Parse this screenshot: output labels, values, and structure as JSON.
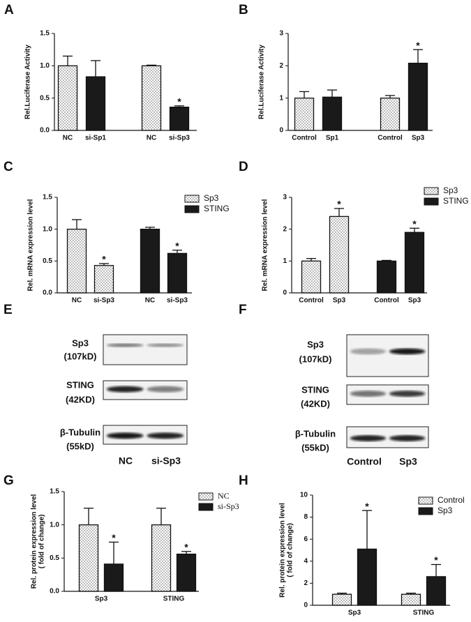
{
  "chart_data": [
    {
      "type": "bar",
      "panel": "A",
      "ylabel": [
        "Rel.Luciferase Activity"
      ],
      "categories": [
        "NC",
        "si-Sp1",
        "NC",
        "si-Sp3"
      ],
      "series": [
        {
          "pattern": "dotted",
          "values": [
            1.0,
            null,
            1.0,
            null
          ],
          "errors": [
            0.15,
            null,
            0.01,
            null
          ],
          "significance": [
            null,
            null,
            null,
            null
          ]
        },
        {
          "pattern": "solid",
          "values": [
            null,
            0.83,
            null,
            0.36
          ],
          "errors": [
            null,
            0.25,
            null,
            0.02
          ],
          "significance": [
            null,
            null,
            null,
            "*"
          ]
        }
      ],
      "ylim": [
        0,
        1.5
      ],
      "yticks": [
        {
          "value": 0,
          "label": "0.0"
        },
        0.5,
        {
          "value": 1,
          "label": "1.0"
        },
        1.5
      ]
    },
    {
      "type": "bar",
      "panel": "B",
      "ylabel": [
        "Rel.Luciferase Activity"
      ],
      "categories": [
        "Control",
        "Sp1",
        "Control",
        "Sp3"
      ],
      "series": [
        {
          "pattern": "dotted",
          "values": [
            1.0,
            null,
            1.0,
            null
          ],
          "errors": [
            0.2,
            null,
            0.08,
            null
          ],
          "significance": [
            null,
            null,
            null,
            null
          ]
        },
        {
          "pattern": "solid",
          "values": [
            null,
            1.03,
            null,
            2.08
          ],
          "errors": [
            null,
            0.22,
            null,
            0.42
          ],
          "significance": [
            null,
            null,
            null,
            "*"
          ]
        }
      ],
      "ylim": [
        0,
        3
      ],
      "yticks": [
        0,
        1,
        2,
        3
      ]
    },
    {
      "type": "bar",
      "panel": "C",
      "ylabel": [
        "Rel.  mRNA expression level"
      ],
      "categories": [
        "NC",
        "si-Sp3",
        "NC",
        "si-Sp3"
      ],
      "series": [
        {
          "name": "Sp3",
          "pattern": "dotted",
          "values": [
            1.0,
            0.43,
            null,
            null
          ],
          "errors": [
            0.15,
            0.03,
            null,
            null
          ],
          "significance": [
            null,
            "*",
            null,
            null
          ]
        },
        {
          "name": "STING",
          "pattern": "solid",
          "values": [
            null,
            null,
            1.0,
            0.62
          ],
          "errors": [
            null,
            null,
            0.03,
            0.05
          ],
          "significance": [
            null,
            null,
            null,
            "*"
          ]
        }
      ],
      "ylim": [
        0,
        1.5
      ],
      "yticks": [
        {
          "value": 0,
          "label": "0.0"
        },
        0.5,
        {
          "value": 1,
          "label": "1.0"
        },
        1.5
      ]
    },
    {
      "type": "bar",
      "panel": "D",
      "ylabel": [
        "Rel.  mRNA expression level"
      ],
      "categories": [
        "Control",
        "Sp3",
        "Control",
        "Sp3"
      ],
      "series": [
        {
          "name": "Sp3",
          "pattern": "dotted",
          "values": [
            1.0,
            2.4,
            null,
            null
          ],
          "errors": [
            0.08,
            0.25,
            null,
            null
          ],
          "significance": [
            null,
            "*",
            null,
            null
          ]
        },
        {
          "name": "STING",
          "pattern": "solid",
          "values": [
            null,
            null,
            1.0,
            1.9
          ],
          "errors": [
            null,
            null,
            0.02,
            0.13
          ],
          "significance": [
            null,
            null,
            null,
            "*"
          ]
        }
      ],
      "ylim": [
        0,
        3
      ],
      "yticks": [
        0,
        1,
        2,
        3
      ]
    },
    {
      "type": "bar",
      "panel": "G",
      "ylabel": [
        "Rel. protein expression level",
        "( fold of change)"
      ],
      "categories": [
        "Sp3",
        "STING"
      ],
      "series": [
        {
          "name": "NC",
          "pattern": "dotted",
          "values": [
            1.0,
            1.0
          ],
          "errors": [
            0.25,
            0.25
          ],
          "significance": [
            null,
            null
          ]
        },
        {
          "name": "si-Sp3",
          "pattern": "solid",
          "values": [
            0.41,
            0.56
          ],
          "errors": [
            0.33,
            0.04
          ],
          "significance": [
            "*",
            "*"
          ]
        }
      ],
      "ylim": [
        0,
        1.5
      ],
      "yticks": [
        {
          "value": 0,
          "label": "0.0"
        },
        0.5,
        {
          "value": 1,
          "label": "1.0"
        },
        1.5
      ]
    },
    {
      "type": "bar",
      "panel": "H",
      "ylabel": [
        "Rel. protein expression level",
        "( fold of change)"
      ],
      "categories": [
        "Sp3",
        "STING"
      ],
      "series": [
        {
          "name": "Control",
          "pattern": "dotted",
          "values": [
            1.0,
            1.0
          ],
          "errors": [
            0.1,
            0.1
          ],
          "significance": [
            null,
            null
          ]
        },
        {
          "name": "Sp3",
          "pattern": "solid",
          "values": [
            5.1,
            2.6
          ],
          "errors": [
            3.5,
            1.1
          ],
          "significance": [
            "*",
            "*"
          ]
        }
      ],
      "ylim": [
        0,
        10
      ],
      "yticks": [
        0,
        2,
        4,
        6,
        8,
        10
      ]
    }
  ],
  "blots": [
    {
      "panel": "E",
      "rows": [
        {
          "protein": "Sp3",
          "size": "(107kD)"
        },
        {
          "protein": "STING",
          "size": "(42KD)"
        },
        {
          "protein": "β-Tubulin",
          "size": "(55kD)"
        }
      ],
      "lanes": [
        "NC",
        "si-Sp3"
      ]
    },
    {
      "panel": "F",
      "rows": [
        {
          "protein": "Sp3",
          "size": "(107kD)"
        },
        {
          "protein": "STING",
          "size": "(42KD)"
        },
        {
          "protein": "β-Tubulin",
          "size": "(55kD)"
        }
      ],
      "lanes": [
        "Control",
        "Sp3"
      ]
    }
  ]
}
